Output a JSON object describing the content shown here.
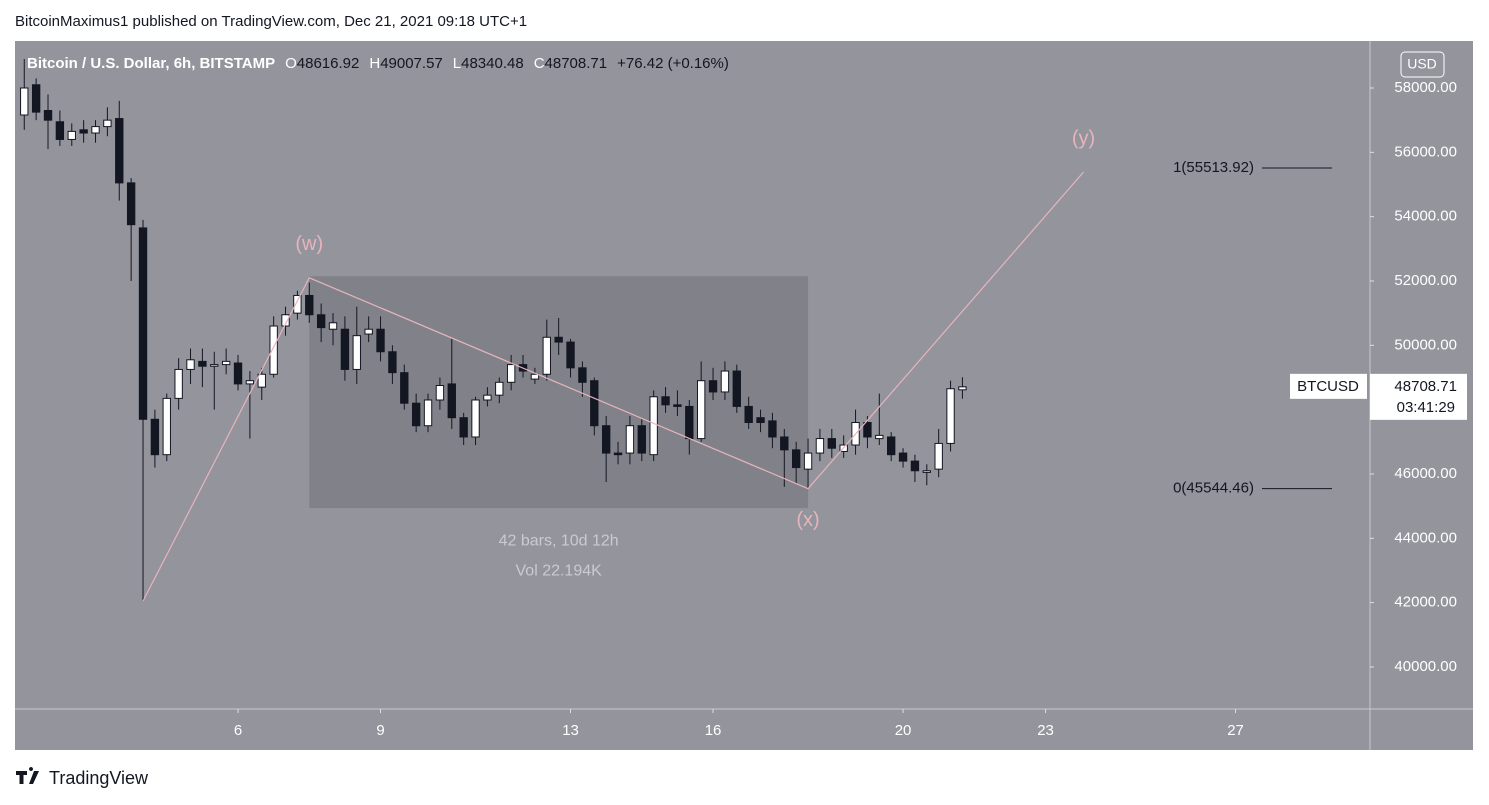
{
  "header": {
    "text": "BitcoinMaximus1 published on TradingView.com, Dec 21, 2021 09:18 UTC+1"
  },
  "footer": {
    "brand": "TradingView"
  },
  "chart_data": {
    "type": "candlestick",
    "title": "Bitcoin / U.S. Dollar, 6h, BITSTAMP",
    "ohlc_letters": [
      "O",
      "H",
      "L",
      "C"
    ],
    "change": "+76.42 (+0.16%)",
    "currency": "USD",
    "symbol": "BTCUSD",
    "countdown": "03:41:29",
    "up_color": "#ffffff",
    "down_color": "#131722",
    "background": "#93949c",
    "grid": false,
    "xlim": [
      1.305,
      29.83
    ],
    "xticks": [
      6,
      9,
      13,
      16,
      20,
      23,
      27
    ],
    "ylim": [
      38693,
      59461
    ],
    "yticks": [
      {
        "value": 40000,
        "label": "40000.00"
      },
      {
        "value": 42000,
        "label": "42000.00"
      },
      {
        "value": 44000,
        "label": "44000.00"
      },
      {
        "value": 46000,
        "label": "46000.00"
      },
      {
        "value": 48000,
        "label": "48000.00"
      },
      {
        "value": 50000,
        "label": "50000.00"
      },
      {
        "value": 52000,
        "label": "52000.00"
      },
      {
        "value": 54000,
        "label": "54000.00"
      },
      {
        "value": 56000,
        "label": "56000.00"
      },
      {
        "value": 58000,
        "label": "58000.00"
      }
    ],
    "x": [
      1.5,
      1.75,
      2,
      2.25,
      2.5,
      2.75,
      3,
      3.25,
      3.5,
      3.75,
      4,
      4.25,
      4.5,
      4.75,
      5,
      5.25,
      5.5,
      5.75,
      6,
      6.25,
      6.5,
      6.75,
      7,
      7.25,
      7.5,
      7.75,
      8,
      8.25,
      8.5,
      8.75,
      9,
      9.25,
      9.5,
      9.75,
      10,
      10.25,
      10.5,
      10.75,
      11,
      11.25,
      11.5,
      11.75,
      12,
      12.25,
      12.5,
      12.75,
      13,
      13.25,
      13.5,
      13.75,
      14,
      14.25,
      14.5,
      14.75,
      15,
      15.25,
      15.5,
      15.75,
      16,
      16.25,
      16.5,
      16.75,
      17,
      17.25,
      17.5,
      17.75,
      18,
      18.25,
      18.5,
      18.75,
      19,
      19.25,
      19.5,
      19.75,
      20,
      20.25,
      20.5,
      20.75,
      21,
      21.25
    ],
    "open": [
      57160,
      58100,
      57300,
      56950,
      56400,
      56700,
      56600,
      56800,
      57050,
      55050,
      53650,
      47700,
      46600,
      48350,
      49250,
      49500,
      49350,
      49400,
      49450,
      48800,
      48700,
      49100,
      50600,
      51000,
      51550,
      50950,
      50500,
      50500,
      49250,
      50350,
      50500,
      49800,
      49150,
      48200,
      47500,
      48300,
      48800,
      47750,
      47150,
      48300,
      48450,
      48850,
      49400,
      48950,
      49100,
      50250,
      50100,
      49300,
      48900,
      47500,
      46650,
      46650,
      47500,
      46600,
      48400,
      48150,
      48100,
      47100,
      48900,
      48550,
      49200,
      48100,
      47750,
      47650,
      47150,
      46750,
      46150,
      46650,
      47100,
      46700,
      46900,
      47600,
      47100,
      47150,
      46650,
      46400,
      46050,
      46150,
      46950,
      48616.92
    ],
    "high": [
      58900,
      58300,
      57800,
      57300,
      56900,
      57000,
      57000,
      57400,
      57600,
      55200,
      53900,
      48000,
      48500,
      49600,
      49900,
      49900,
      49800,
      49900,
      49700,
      49200,
      49300,
      50900,
      51200,
      51700,
      51950,
      51300,
      51000,
      50900,
      51200,
      50900,
      50900,
      50000,
      49400,
      48500,
      48500,
      49000,
      50200,
      47900,
      48400,
      48700,
      49000,
      49700,
      49700,
      49300,
      50800,
      50850,
      50200,
      49500,
      49000,
      47800,
      47000,
      47800,
      47700,
      48600,
      48700,
      48600,
      48300,
      49500,
      49300,
      49500,
      49400,
      48400,
      48000,
      47900,
      47400,
      47000,
      47100,
      47400,
      47400,
      47200,
      48000,
      47800,
      48500,
      47300,
      46800,
      46600,
      46300,
      47400,
      48900,
      49007.57
    ],
    "low": [
      56700,
      57000,
      56100,
      56200,
      56200,
      56300,
      56300,
      56500,
      54500,
      52000,
      42050,
      46200,
      46400,
      48000,
      48800,
      48700,
      48000,
      49100,
      48600,
      47100,
      48300,
      49000,
      50300,
      50800,
      50700,
      50100,
      50000,
      48900,
      48800,
      50100,
      49500,
      48800,
      48000,
      47300,
      47300,
      48000,
      47400,
      46900,
      46900,
      48100,
      48200,
      48600,
      49000,
      48800,
      48900,
      49700,
      49000,
      48400,
      47200,
      45750,
      46300,
      46300,
      46400,
      46400,
      47900,
      47800,
      46600,
      47000,
      48300,
      48300,
      47900,
      47400,
      47300,
      46800,
      45600,
      45700,
      45550,
      46400,
      46500,
      46500,
      46600,
      46800,
      46900,
      46400,
      46200,
      45750,
      45650,
      45900,
      46700,
      48340.48
    ],
    "close": [
      58000,
      57250,
      57000,
      56400,
      56650,
      56600,
      56800,
      57000,
      55050,
      53750,
      47700,
      46600,
      48350,
      49250,
      49550,
      49350,
      49400,
      49500,
      48800,
      48900,
      49100,
      50600,
      50950,
      51550,
      50950,
      50550,
      50700,
      49250,
      50300,
      50500,
      49800,
      49150,
      48200,
      47500,
      48300,
      48750,
      47750,
      47150,
      48300,
      48450,
      48850,
      49400,
      49200,
      49100,
      50250,
      50100,
      49300,
      48850,
      47500,
      46650,
      46600,
      47500,
      46650,
      48400,
      48150,
      48100,
      47100,
      48900,
      48550,
      49200,
      48100,
      47600,
      47600,
      47150,
      46750,
      46200,
      46650,
      47100,
      46800,
      46900,
      47600,
      47150,
      47200,
      46600,
      46400,
      46100,
      46100,
      46950,
      48650,
      48708.71
    ],
    "range_box": {
      "x": [
        7.5,
        18.0
      ],
      "y": [
        44940,
        52150
      ],
      "labels": [
        "42 bars, 10d 12h",
        "Vol 22.194K"
      ]
    },
    "wave": {
      "color": "#e8b4bc",
      "x": [
        4.0,
        7.5,
        18.0,
        23.8
      ],
      "y": [
        42050,
        52100,
        45544.46,
        55388
      ],
      "labels": [
        null,
        "(w)",
        "(x)",
        "(y)"
      ]
    },
    "fib_levels": [
      {
        "value": 55513.92,
        "label": "1(55513.92)"
      },
      {
        "value": 45544.46,
        "label": "0(45544.46)"
      }
    ]
  }
}
